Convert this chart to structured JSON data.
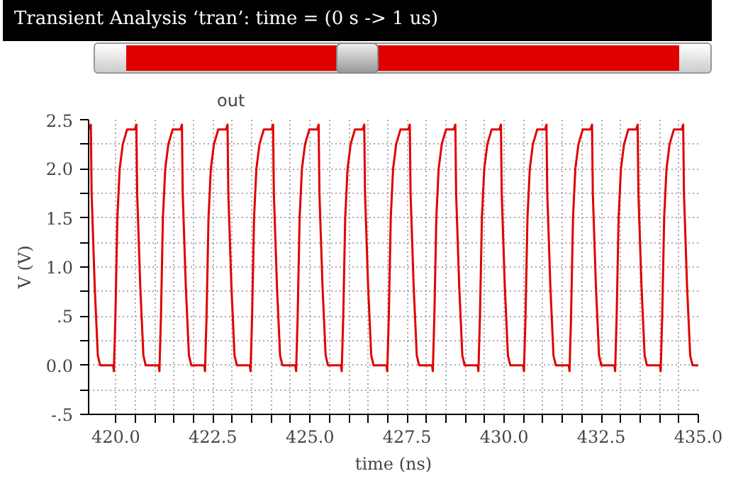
{
  "chart_data": {
    "type": "line",
    "title": "Transient Analysis ‘tran’: time = (0 s -> 1 us)",
    "xlabel": "time (ns)",
    "ylabel": "V (V)",
    "series": [
      {
        "name": "out",
        "color": "#e00000",
        "x": [
          419.317,
          419.357,
          419.377,
          419.457,
          419.537,
          419.597,
          419.93,
          419.95,
          419.99,
          420.04,
          420.1,
          420.18,
          420.29,
          420.49,
          420.53,
          420.55,
          420.63,
          420.71,
          420.77,
          421.103,
          421.123,
          421.163,
          421.213,
          421.273,
          421.353,
          421.463,
          421.663,
          421.703,
          421.723,
          421.803,
          421.883,
          421.943,
          422.277,
          422.297,
          422.337,
          422.387,
          422.447,
          422.527,
          422.637,
          422.837,
          422.877,
          422.897,
          422.977,
          423.057,
          423.117,
          423.45,
          423.47,
          423.51,
          423.56,
          423.62,
          423.7,
          423.81,
          424.01,
          424.05,
          424.07,
          424.15,
          424.23,
          424.29,
          424.623,
          424.643,
          424.683,
          424.733,
          424.793,
          424.873,
          424.983,
          425.183,
          425.223,
          425.243,
          425.323,
          425.403,
          425.463,
          425.797,
          425.817,
          425.857,
          425.907,
          425.967,
          426.047,
          426.157,
          426.357,
          426.397,
          426.417,
          426.497,
          426.577,
          426.637,
          426.97,
          426.99,
          427.03,
          427.08,
          427.14,
          427.22,
          427.33,
          427.53,
          427.57,
          427.59,
          427.67,
          427.75,
          427.81,
          428.143,
          428.163,
          428.203,
          428.253,
          428.313,
          428.393,
          428.503,
          428.703,
          428.743,
          428.763,
          428.843,
          428.923,
          428.983,
          429.317,
          429.337,
          429.377,
          429.427,
          429.487,
          429.567,
          429.677,
          429.877,
          429.917,
          429.937,
          430.017,
          430.097,
          430.157,
          430.49,
          430.51,
          430.55,
          430.6,
          430.66,
          430.74,
          430.85,
          431.05,
          431.09,
          431.11,
          431.19,
          431.27,
          431.33,
          431.663,
          431.683,
          431.723,
          431.773,
          431.833,
          431.913,
          432.023,
          432.223,
          432.263,
          432.283,
          432.363,
          432.443,
          432.503,
          432.837,
          432.857,
          432.897,
          432.947,
          433.007,
          433.087,
          433.197,
          433.397,
          433.437,
          433.457,
          433.537,
          433.617,
          433.677,
          434.01,
          434.03,
          434.07,
          434.12,
          434.18,
          434.26,
          434.37,
          434.57,
          434.61,
          434.63,
          434.71,
          434.79,
          434.85,
          435.0
        ],
        "values": [
          2.4,
          2.45,
          1.75,
          0.8,
          0.1,
          0.0,
          0.0,
          -0.06,
          0.5,
          1.5,
          2.0,
          2.25,
          2.4,
          2.4,
          2.45,
          1.75,
          0.8,
          0.1,
          0.0,
          0.0,
          -0.06,
          0.5,
          1.5,
          2.0,
          2.25,
          2.4,
          2.4,
          2.45,
          1.75,
          0.8,
          0.1,
          0.0,
          0.0,
          -0.06,
          0.5,
          1.5,
          2.0,
          2.25,
          2.4,
          2.4,
          2.45,
          1.75,
          0.8,
          0.1,
          0.0,
          0.0,
          -0.06,
          0.5,
          1.5,
          2.0,
          2.25,
          2.4,
          2.4,
          2.45,
          1.75,
          0.8,
          0.1,
          0.0,
          0.0,
          -0.06,
          0.5,
          1.5,
          2.0,
          2.25,
          2.4,
          2.4,
          2.45,
          1.75,
          0.8,
          0.1,
          0.0,
          0.0,
          -0.06,
          0.5,
          1.5,
          2.0,
          2.25,
          2.4,
          2.4,
          2.45,
          1.75,
          0.8,
          0.1,
          0.0,
          0.0,
          -0.06,
          0.5,
          1.5,
          2.0,
          2.25,
          2.4,
          2.4,
          2.45,
          1.75,
          0.8,
          0.1,
          0.0,
          0.0,
          -0.06,
          0.5,
          1.5,
          2.0,
          2.25,
          2.4,
          2.4,
          2.45,
          1.75,
          0.8,
          0.1,
          0.0,
          0.0,
          -0.06,
          0.5,
          1.5,
          2.0,
          2.25,
          2.4,
          2.4,
          2.45,
          1.75,
          0.8,
          0.1,
          0.0,
          0.0,
          -0.06,
          0.5,
          1.5,
          2.0,
          2.25,
          2.4,
          2.4,
          2.45,
          1.75,
          0.8,
          0.1,
          0.0,
          0.0,
          -0.06,
          0.5,
          1.5,
          2.0,
          2.25,
          2.4,
          2.4,
          2.45,
          1.75,
          0.8,
          0.1,
          0.0,
          0.0,
          -0.06,
          0.5,
          1.5,
          2.0,
          2.25,
          2.4,
          2.4,
          2.45,
          1.75,
          0.8,
          0.1,
          0.0,
          0.0,
          -0.06,
          0.5,
          1.5,
          2.0,
          2.25,
          2.4,
          2.4,
          2.45,
          1.75,
          0.8,
          0.1,
          0.0,
          0.0
        ]
      }
    ],
    "xlim": [
      419.3,
      435.0
    ],
    "xticks": [
      {
        "value": 420,
        "label": "420.0"
      },
      {
        "value": 420.5,
        "label": null
      },
      {
        "value": 421,
        "label": null
      },
      {
        "value": 421.5,
        "label": null
      },
      {
        "value": 422,
        "label": null
      },
      {
        "value": 422.5,
        "label": "422.5"
      },
      {
        "value": 423,
        "label": null
      },
      {
        "value": 423.5,
        "label": null
      },
      {
        "value": 424,
        "label": null
      },
      {
        "value": 424.5,
        "label": null
      },
      {
        "value": 425,
        "label": "425.0"
      },
      {
        "value": 425.5,
        "label": null
      },
      {
        "value": 426,
        "label": null
      },
      {
        "value": 426.5,
        "label": null
      },
      {
        "value": 427,
        "label": null
      },
      {
        "value": 427.5,
        "label": "427.5"
      },
      {
        "value": 428,
        "label": null
      },
      {
        "value": 428.5,
        "label": null
      },
      {
        "value": 429,
        "label": null
      },
      {
        "value": 429.5,
        "label": null
      },
      {
        "value": 430,
        "label": "430.0"
      },
      {
        "value": 430.5,
        "label": null
      },
      {
        "value": 431,
        "label": null
      },
      {
        "value": 431.5,
        "label": null
      },
      {
        "value": 432,
        "label": null
      },
      {
        "value": 432.5,
        "label": "432.5"
      },
      {
        "value": 433,
        "label": null
      },
      {
        "value": 433.5,
        "label": null
      },
      {
        "value": 434,
        "label": null
      },
      {
        "value": 434.5,
        "label": null
      },
      {
        "value": 435,
        "label": "435.0"
      }
    ],
    "ylim": [
      -0.5,
      2.5
    ],
    "yticks": [
      {
        "value": -0.5,
        "label": "-.5"
      },
      {
        "value": -0.25,
        "label": null
      },
      {
        "value": 0,
        "label": "0.0"
      },
      {
        "value": 0.25,
        "label": null
      },
      {
        "value": 0.5,
        "label": ".5"
      },
      {
        "value": 0.75,
        "label": null
      },
      {
        "value": 1,
        "label": "1.0"
      },
      {
        "value": 1.25,
        "label": null
      },
      {
        "value": 1.5,
        "label": "1.5"
      },
      {
        "value": 1.75,
        "label": null
      },
      {
        "value": 2,
        "label": "2.0"
      },
      {
        "value": 2.25,
        "label": null
      },
      {
        "value": 2.5,
        "label": "2.5"
      }
    ],
    "grid": true,
    "legend": "top left",
    "marker": "none",
    "line_style": "solid"
  }
}
